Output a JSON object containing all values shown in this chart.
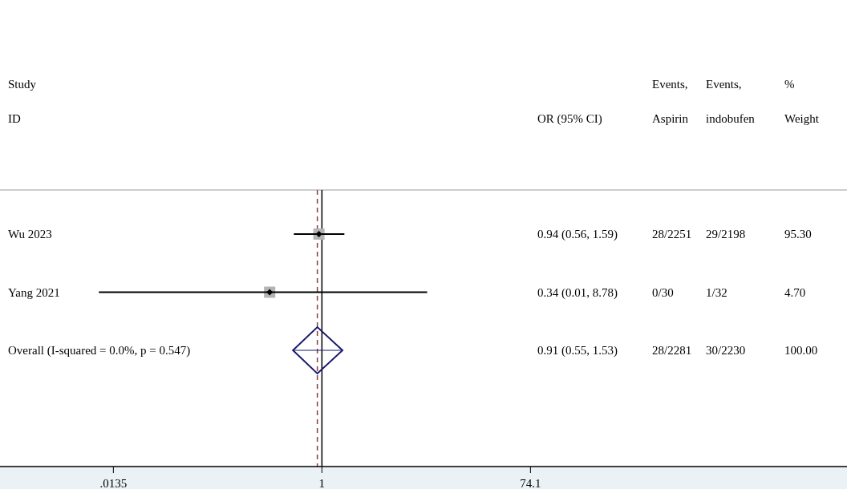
{
  "chart_data": {
    "type": "scatter",
    "orientation": "horizontal",
    "categories": [
      "Wu 2023",
      "Yang 2021",
      "Overall  (I-squared = 0.0%, p = 0.547)"
    ],
    "xlim": [
      0.0013,
      51000
    ],
    "xticks": [
      {
        "value": 0.0135,
        "label": ".0135"
      },
      1,
      74.1
    ],
    "log": "x",
    "grid": false,
    "series": [
      {
        "marker": "square",
        "color": "#b4b4b4",
        "values": [
          0.94,
          0.34,
          null
        ],
        "errors": [
          [
            0.56,
            1.59
          ],
          [
            0.01,
            8.78
          ],
          null
        ]
      },
      {
        "marker": "diamond",
        "color": "#1a1a6e",
        "values": [
          null,
          null,
          0.91
        ],
        "errors": [
          null,
          null,
          [
            0.55,
            1.53
          ]
        ]
      }
    ],
    "ref_lines": [
      {
        "axis": "x",
        "value": 1,
        "color": "#000000",
        "line_style": "solid"
      },
      {
        "axis": "x",
        "value": 0.91,
        "color": "#8b3a3a",
        "line_style": "dashed"
      }
    ],
    "annotations": [
      "Study",
      "ID",
      "Events,",
      "Events,",
      "%",
      "OR (95% CI)",
      "Aspirin",
      "indobufen",
      "Weight",
      "0.94 (0.56, 1.59)",
      "28/2251",
      "29/2198",
      "95.30",
      "0.34 (0.01, 8.78)",
      "0/30",
      "1/32",
      "4.70",
      "0.91 (0.55, 1.53)",
      "28/2281",
      "30/2230",
      "100.00"
    ]
  }
}
